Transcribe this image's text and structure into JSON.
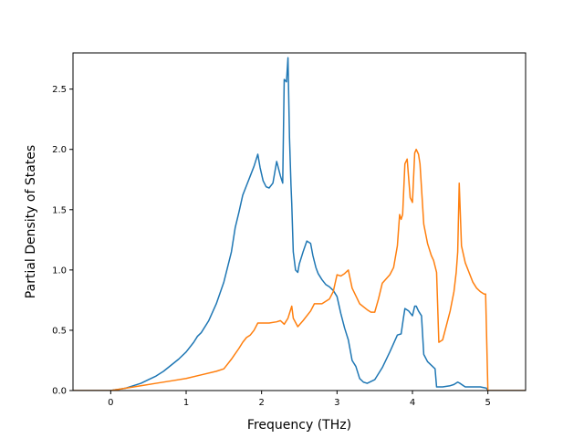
{
  "chart_data": {
    "type": "line",
    "title": "",
    "xlabel": "Frequency (THz)",
    "ylabel": "Partial Density of States",
    "xlim": [
      -0.5,
      5.5
    ],
    "ylim": [
      0.0,
      2.8
    ],
    "xticks": [
      0,
      1,
      2,
      3,
      4,
      5
    ],
    "xtick_labels": [
      "0",
      "1",
      "2",
      "3",
      "4",
      "5"
    ],
    "yticks": [
      0.0,
      0.5,
      1.0,
      1.5,
      2.0,
      2.5
    ],
    "ytick_labels": [
      "0.0",
      "0.5",
      "1.0",
      "1.5",
      "2.0",
      "2.5"
    ],
    "grid": false,
    "legend": "none",
    "series": [
      {
        "color": "#1f77b4",
        "x": [
          -0.5,
          0.0,
          0.1,
          0.2,
          0.3,
          0.4,
          0.5,
          0.6,
          0.7,
          0.8,
          0.9,
          1.0,
          1.1,
          1.15,
          1.2,
          1.3,
          1.4,
          1.5,
          1.6,
          1.65,
          1.7,
          1.75,
          1.8,
          1.85,
          1.9,
          1.95,
          1.98,
          2.02,
          2.06,
          2.1,
          2.15,
          2.2,
          2.25,
          2.28,
          2.3,
          2.33,
          2.35,
          2.37,
          2.38,
          2.39,
          2.4,
          2.42,
          2.45,
          2.48,
          2.5,
          2.55,
          2.6,
          2.65,
          2.68,
          2.72,
          2.75,
          2.8,
          2.85,
          2.9,
          2.95,
          3.0,
          3.05,
          3.1,
          3.15,
          3.2,
          3.25,
          3.3,
          3.35,
          3.4,
          3.5,
          3.6,
          3.7,
          3.8,
          3.85,
          3.88,
          3.9,
          3.95,
          4.0,
          4.03,
          4.05,
          4.08,
          4.12,
          4.15,
          4.2,
          4.3,
          4.32,
          4.4,
          4.5,
          4.55,
          4.6,
          4.63,
          4.7,
          4.8,
          4.9,
          4.98,
          5.0,
          5.1,
          5.5
        ],
        "y": [
          0.0,
          0.0,
          0.01,
          0.02,
          0.04,
          0.06,
          0.09,
          0.12,
          0.16,
          0.21,
          0.26,
          0.32,
          0.4,
          0.45,
          0.48,
          0.58,
          0.72,
          0.9,
          1.15,
          1.35,
          1.48,
          1.62,
          1.7,
          1.78,
          1.86,
          1.96,
          1.85,
          1.74,
          1.69,
          1.68,
          1.72,
          1.9,
          1.78,
          1.72,
          2.58,
          2.56,
          2.76,
          2.1,
          1.9,
          1.7,
          1.55,
          1.15,
          1.0,
          0.98,
          1.05,
          1.15,
          1.24,
          1.22,
          1.12,
          1.02,
          0.97,
          0.92,
          0.88,
          0.86,
          0.83,
          0.78,
          0.64,
          0.52,
          0.42,
          0.25,
          0.2,
          0.1,
          0.07,
          0.06,
          0.09,
          0.19,
          0.32,
          0.46,
          0.47,
          0.6,
          0.68,
          0.66,
          0.62,
          0.7,
          0.7,
          0.66,
          0.62,
          0.3,
          0.24,
          0.18,
          0.03,
          0.03,
          0.04,
          0.05,
          0.07,
          0.06,
          0.03,
          0.03,
          0.03,
          0.02,
          0.0,
          0.0,
          0.0
        ]
      },
      {
        "color": "#ff7f0e",
        "x": [
          -0.5,
          0.0,
          0.2,
          0.4,
          0.6,
          0.8,
          1.0,
          1.2,
          1.4,
          1.5,
          1.55,
          1.6,
          1.7,
          1.75,
          1.8,
          1.85,
          1.9,
          1.95,
          2.0,
          2.1,
          2.2,
          2.25,
          2.3,
          2.35,
          2.4,
          2.42,
          2.48,
          2.55,
          2.65,
          2.7,
          2.75,
          2.8,
          2.9,
          2.95,
          3.0,
          3.05,
          3.1,
          3.15,
          3.2,
          3.3,
          3.4,
          3.45,
          3.5,
          3.55,
          3.6,
          3.7,
          3.75,
          3.8,
          3.83,
          3.85,
          3.87,
          3.9,
          3.93,
          3.97,
          4.0,
          4.03,
          4.05,
          4.08,
          4.1,
          4.15,
          4.2,
          4.25,
          4.28,
          4.32,
          4.35,
          4.4,
          4.45,
          4.5,
          4.55,
          4.58,
          4.6,
          4.62,
          4.65,
          4.7,
          4.75,
          4.8,
          4.85,
          4.9,
          4.95,
          4.97,
          5.0,
          5.1,
          5.5
        ],
        "y": [
          0.0,
          0.0,
          0.02,
          0.04,
          0.06,
          0.08,
          0.1,
          0.13,
          0.16,
          0.18,
          0.22,
          0.26,
          0.35,
          0.4,
          0.44,
          0.46,
          0.5,
          0.56,
          0.56,
          0.56,
          0.57,
          0.58,
          0.55,
          0.6,
          0.7,
          0.6,
          0.53,
          0.58,
          0.66,
          0.72,
          0.72,
          0.72,
          0.76,
          0.82,
          0.96,
          0.95,
          0.97,
          1.0,
          0.85,
          0.72,
          0.67,
          0.65,
          0.65,
          0.76,
          0.89,
          0.96,
          1.02,
          1.2,
          1.46,
          1.42,
          1.46,
          1.88,
          1.92,
          1.6,
          1.56,
          1.97,
          2.0,
          1.96,
          1.88,
          1.38,
          1.22,
          1.12,
          1.08,
          0.98,
          0.4,
          0.42,
          0.54,
          0.66,
          0.82,
          0.98,
          1.15,
          1.72,
          1.2,
          1.06,
          0.98,
          0.9,
          0.85,
          0.82,
          0.8,
          0.8,
          0.0,
          0.0,
          0.0
        ]
      }
    ]
  }
}
